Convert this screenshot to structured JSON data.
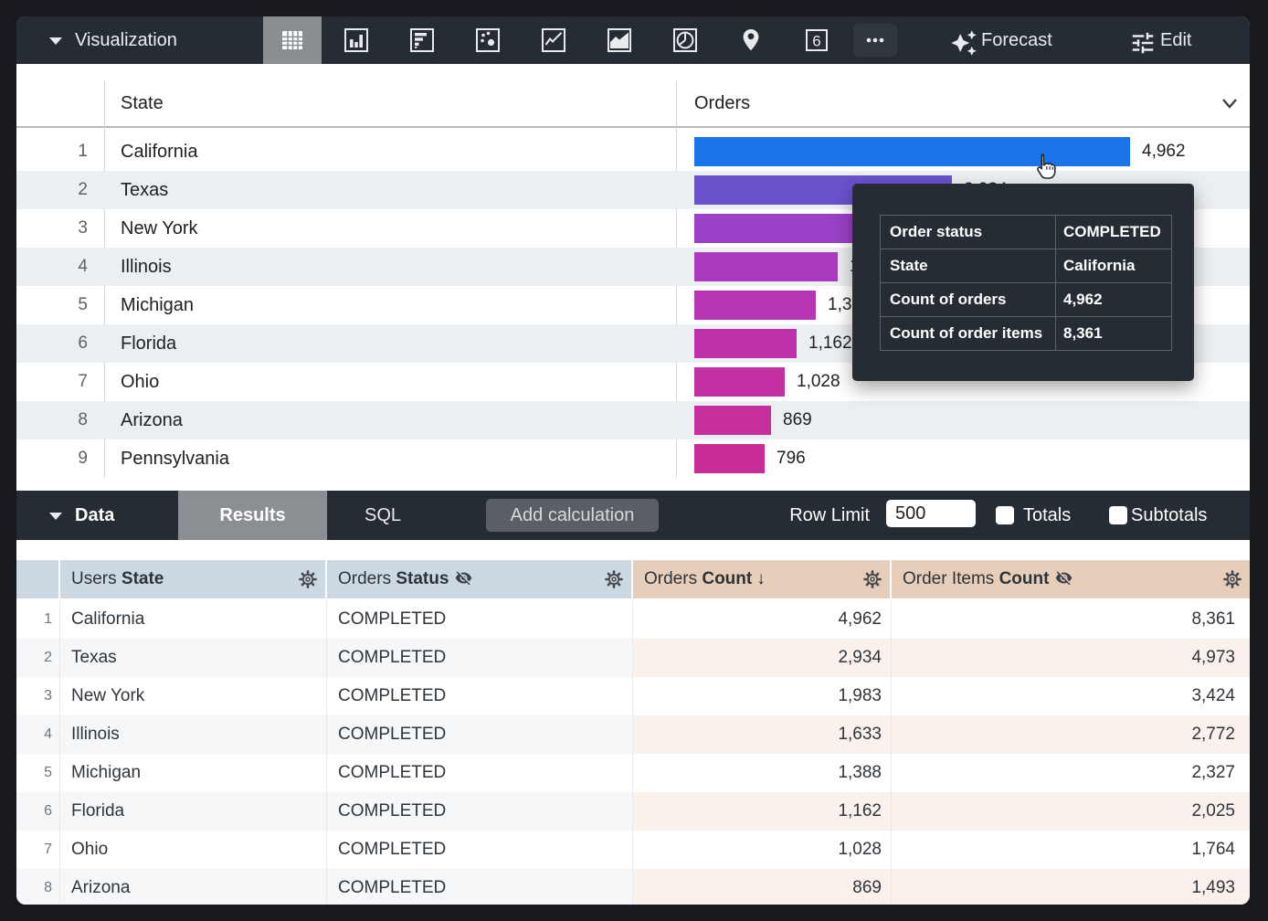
{
  "toolbar": {
    "visualization_label": "Visualization",
    "forecast_label": "Forecast",
    "edit_label": "Edit",
    "single_value_number": "6",
    "icons": [
      "table",
      "column-chart",
      "bar-chart",
      "scatter",
      "line-chart",
      "area-chart",
      "pie-chart",
      "map-pin",
      "single-value",
      "more"
    ]
  },
  "viz": {
    "state_header": "State",
    "orders_header": "Orders",
    "max_value": 4962,
    "rows": [
      {
        "rank": "1",
        "state": "California",
        "value": 4962,
        "value_label": "4,962",
        "color": "#1a73e8"
      },
      {
        "rank": "2",
        "state": "Texas",
        "value": 2934,
        "value_label": "2,934",
        "color": "#6b51cc"
      },
      {
        "rank": "3",
        "state": "New York",
        "value": 1983,
        "value_label": "1,983",
        "color": "#9a41c8"
      },
      {
        "rank": "4",
        "state": "Illinois",
        "value": 1633,
        "value_label": "1,633",
        "color": "#ac3abe"
      },
      {
        "rank": "5",
        "state": "Michigan",
        "value": 1388,
        "value_label": "1,388",
        "color": "#b735b3"
      },
      {
        "rank": "6",
        "state": "Florida",
        "value": 1162,
        "value_label": "1,162",
        "color": "#bd32ab"
      },
      {
        "rank": "7",
        "state": "Ohio",
        "value": 1028,
        "value_label": "1,028",
        "color": "#c230a3"
      },
      {
        "rank": "8",
        "state": "Arizona",
        "value": 869,
        "value_label": "869",
        "color": "#c62e9c"
      },
      {
        "rank": "9",
        "state": "Pennsylvania",
        "value": 796,
        "value_label": "796",
        "color": "#c92d95"
      }
    ]
  },
  "tooltip": {
    "rows": [
      {
        "label": "Order status",
        "value": "COMPLETED"
      },
      {
        "label": "State",
        "value": "California"
      },
      {
        "label": "Count of orders",
        "value": "4,962"
      },
      {
        "label": "Count of order items",
        "value": "8,361"
      }
    ]
  },
  "data_panel": {
    "data_label": "Data",
    "results_tab": "Results",
    "sql_tab": "SQL",
    "add_calculation": "Add calculation",
    "row_limit_label": "Row Limit",
    "row_limit_value": "500",
    "totals_label": "Totals",
    "subtotals_label": "Subtotals"
  },
  "data_table": {
    "headers": [
      {
        "prefix": "Users ",
        "bold": "State"
      },
      {
        "prefix": "Orders ",
        "bold": "Status",
        "hidden": true
      },
      {
        "prefix": "Orders ",
        "bold": "Count",
        "sort_indicator": "↓"
      },
      {
        "prefix": "Order Items ",
        "bold": "Count",
        "hidden": true
      }
    ],
    "rows": [
      {
        "num": "1",
        "state": "California",
        "status": "COMPLETED",
        "orders_count": "4,962",
        "order_items_count": "8,361"
      },
      {
        "num": "2",
        "state": "Texas",
        "status": "COMPLETED",
        "orders_count": "2,934",
        "order_items_count": "4,973"
      },
      {
        "num": "3",
        "state": "New York",
        "status": "COMPLETED",
        "orders_count": "1,983",
        "order_items_count": "3,424"
      },
      {
        "num": "4",
        "state": "Illinois",
        "status": "COMPLETED",
        "orders_count": "1,633",
        "order_items_count": "2,772"
      },
      {
        "num": "5",
        "state": "Michigan",
        "status": "COMPLETED",
        "orders_count": "1,388",
        "order_items_count": "2,327"
      },
      {
        "num": "6",
        "state": "Florida",
        "status": "COMPLETED",
        "orders_count": "1,162",
        "order_items_count": "2,025"
      },
      {
        "num": "7",
        "state": "Ohio",
        "status": "COMPLETED",
        "orders_count": "1,028",
        "order_items_count": "1,764"
      },
      {
        "num": "8",
        "state": "Arizona",
        "status": "COMPLETED",
        "orders_count": "869",
        "order_items_count": "1,493"
      }
    ]
  },
  "colors": {
    "toolbar_bg": "#262c34",
    "selected_tab_bg": "#8b8f93",
    "dimension_header_bg": "#cdd9e2",
    "measure_header_bg": "#e7ceba",
    "viz_stripe": "#eceff1",
    "top_bar_color": "#1a73e8"
  }
}
